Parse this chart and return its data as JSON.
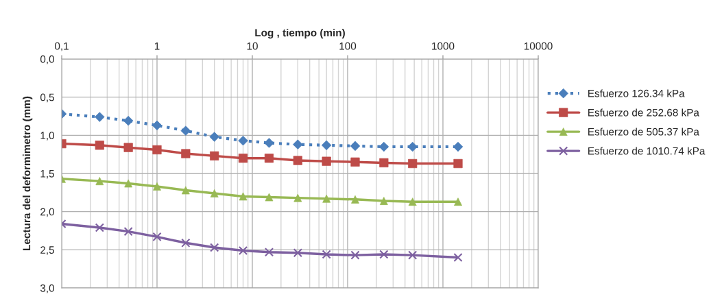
{
  "chart_data": {
    "type": "line",
    "xlabel": "Log , tiempo (min)",
    "ylabel": "Lectura del deformimetro (mm)",
    "x": [
      0.1,
      0.25,
      0.5,
      1,
      2,
      4,
      8,
      15,
      30,
      60,
      120,
      240,
      480,
      1440
    ],
    "series": [
      {
        "name": "Esfuerzo 126.34 kPa",
        "color": "#4a7ebb",
        "marker": "diamond",
        "line_style": "dotted",
        "values": [
          0.72,
          0.76,
          0.81,
          0.87,
          0.94,
          1.02,
          1.07,
          1.1,
          1.12,
          1.13,
          1.14,
          1.15,
          1.15,
          1.15
        ]
      },
      {
        "name": "Esfuerzo de 252.68 kPa",
        "color": "#be4b48",
        "marker": "square",
        "line_style": "solid",
        "values": [
          1.11,
          1.13,
          1.16,
          1.19,
          1.24,
          1.27,
          1.3,
          1.3,
          1.33,
          1.34,
          1.35,
          1.36,
          1.37,
          1.37
        ]
      },
      {
        "name": "Esfuerzo de 505.37 kPa",
        "color": "#98b954",
        "marker": "triangle",
        "line_style": "solid",
        "values": [
          1.57,
          1.6,
          1.63,
          1.67,
          1.72,
          1.76,
          1.8,
          1.81,
          1.82,
          1.83,
          1.84,
          1.86,
          1.87,
          1.87
        ]
      },
      {
        "name": "Esfuerzo de 1010.74 kPa",
        "color": "#7d60a0",
        "marker": "cross",
        "line_style": "solid",
        "values": [
          2.16,
          2.21,
          2.26,
          2.33,
          2.41,
          2.47,
          2.51,
          2.53,
          2.54,
          2.56,
          2.57,
          2.56,
          2.57,
          2.6
        ]
      }
    ],
    "log": "x",
    "xlim": [
      0.1,
      10000
    ],
    "xticks": [
      {
        "value": 0.1,
        "label": "0,1"
      },
      1,
      10,
      100,
      1000,
      10000
    ],
    "ylim": [
      3.0,
      0.0
    ],
    "yticks": [
      {
        "value": 0.0,
        "label": "0,0"
      },
      {
        "value": 0.5,
        "label": "0,5"
      },
      {
        "value": 1.0,
        "label": "1,0"
      },
      {
        "value": 1.5,
        "label": "1,5"
      },
      {
        "value": 2.0,
        "label": "2,0"
      },
      {
        "value": 2.5,
        "label": "2,5"
      },
      {
        "value": 3.0,
        "label": "3,0"
      }
    ],
    "grid": true,
    "legend": "right"
  }
}
